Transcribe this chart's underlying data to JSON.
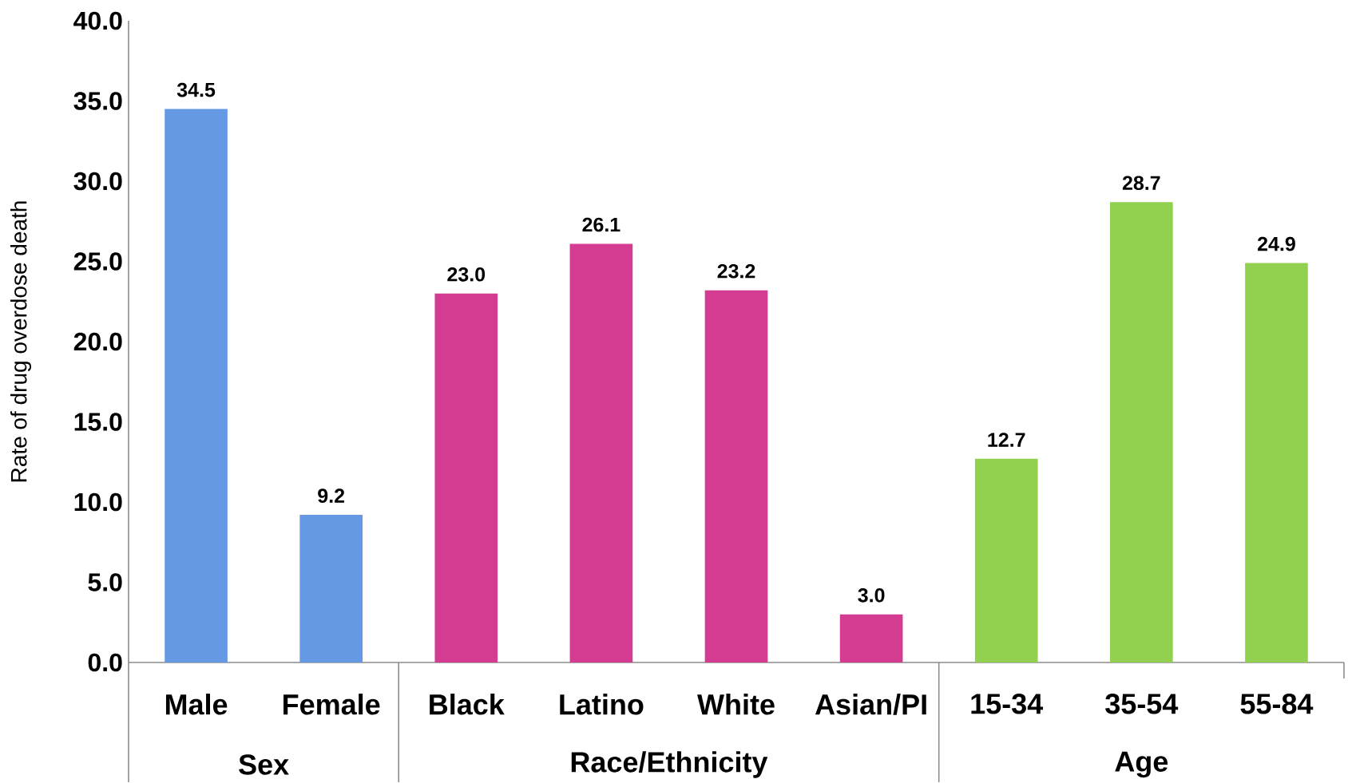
{
  "chart_data": {
    "type": "bar",
    "ylabel": "Rate of drug overdose death",
    "categories": [
      "Male",
      "Female",
      "Black",
      "Latino",
      "White",
      "Asian/PI",
      "15-34",
      "35-54",
      "55-84"
    ],
    "values": [
      34.5,
      9.2,
      23.0,
      26.1,
      23.2,
      3.0,
      12.7,
      28.7,
      24.9
    ],
    "value_labels": [
      "34.5",
      "9.2",
      "23.0",
      "26.1",
      "23.2",
      "3.0",
      "12.7",
      "28.7",
      "24.9"
    ],
    "colors": [
      "#6699e3",
      "#6699e3",
      "#d33c91",
      "#d33c91",
      "#d33c91",
      "#d33c91",
      "#92d050",
      "#92d050",
      "#92d050"
    ],
    "annotations": [
      "Sex",
      "Race/Ethnicity",
      "Age"
    ],
    "ylim": [
      0,
      40
    ],
    "yticks": [
      {
        "value": 0,
        "label": "0.0"
      },
      {
        "value": 5,
        "label": "5.0"
      },
      {
        "value": 10,
        "label": "10.0"
      },
      {
        "value": 15,
        "label": "15.0"
      },
      {
        "value": 20,
        "label": "20.0"
      },
      {
        "value": 25,
        "label": "25.0"
      },
      {
        "value": 30,
        "label": "30.0"
      },
      {
        "value": 35,
        "label": "35.0"
      },
      {
        "value": 40,
        "label": "40.0"
      }
    ]
  }
}
